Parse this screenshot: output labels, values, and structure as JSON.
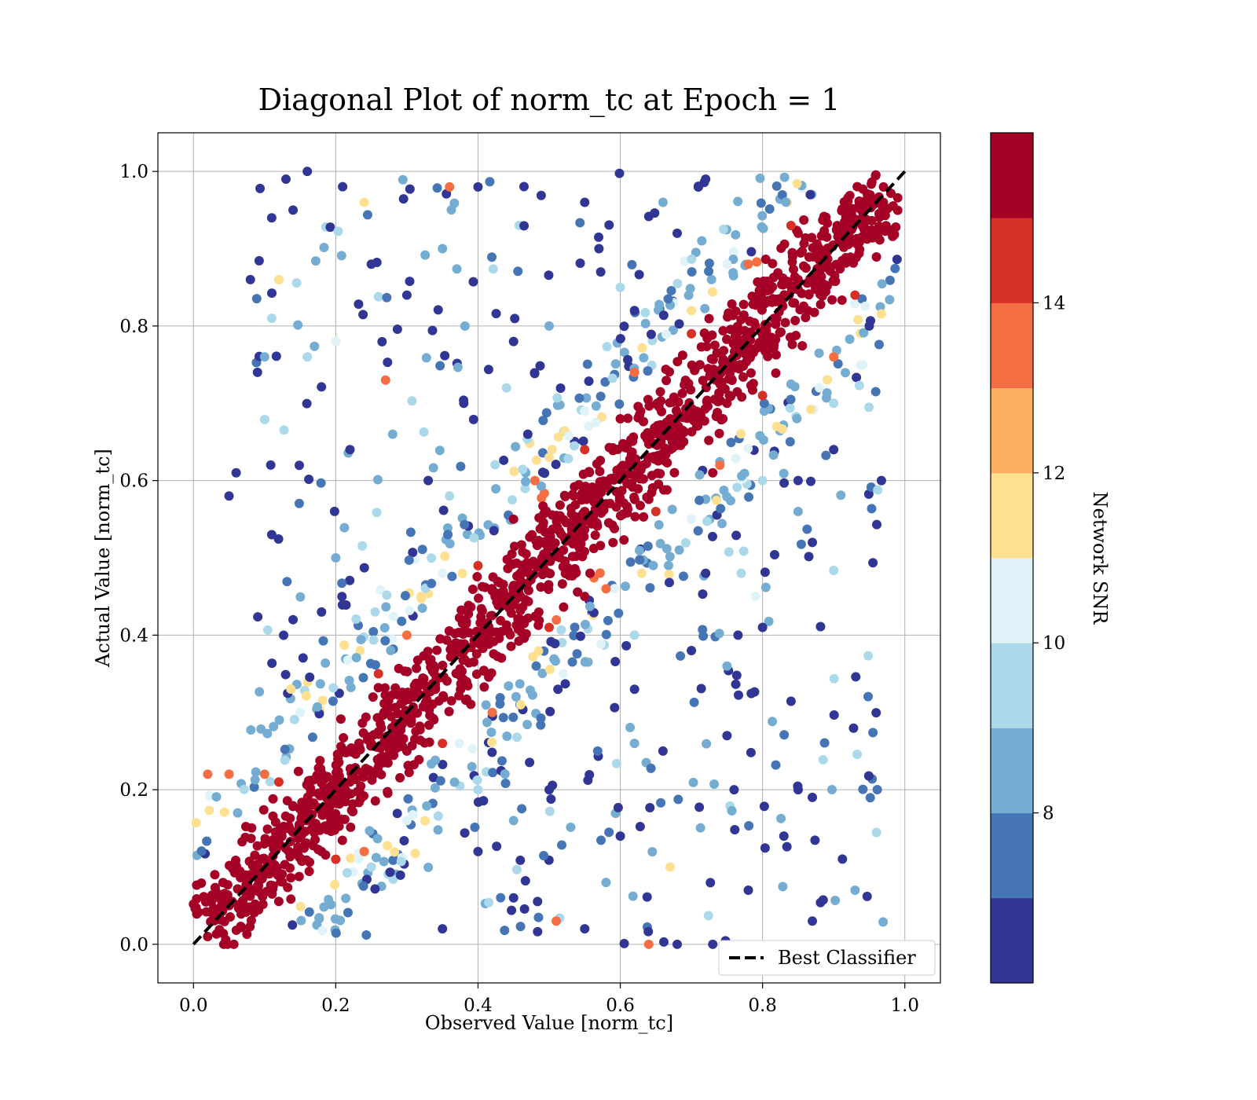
{
  "chart_data": {
    "type": "scatter",
    "title": "Diagonal Plot of norm_tc at Epoch = 1",
    "xlabel": "Observed Value [norm_tc]",
    "ylabel": "Actual Value [norm_tc]",
    "xlim": [
      -0.05,
      1.05
    ],
    "ylim": [
      -0.05,
      1.05
    ],
    "xticks": [
      "0.0",
      "0.2",
      "0.4",
      "0.6",
      "0.8",
      "1.0"
    ],
    "yticks": [
      "0.0",
      "0.2",
      "0.4",
      "0.6",
      "0.8",
      "1.0"
    ],
    "grid": true,
    "legend": {
      "position": "bottom-right",
      "entries": [
        "Best Classifier"
      ]
    },
    "reference_line": {
      "name": "Best Classifier",
      "style": "dashed",
      "color": "#000000",
      "x": [
        0.0,
        1.0
      ],
      "y": [
        0.0,
        1.0
      ]
    },
    "colorbar": {
      "label": "Network SNR",
      "range": [
        6.0,
        16.0
      ],
      "ticks": [
        "8",
        "10",
        "12",
        "14"
      ],
      "bands": [
        "#313695",
        "#4575b4",
        "#74add1",
        "#abd9e9",
        "#e0f3f8",
        "#fee090",
        "#fdae61",
        "#f46d43",
        "#d73027",
        "#a50026"
      ]
    },
    "series": [
      {
        "color_by": "Network SNR",
        "points": [
          [
            0.02,
            0.01,
            15.5
          ],
          [
            0.05,
            0.05,
            15.5
          ],
          [
            0.08,
            0.09,
            15.5
          ],
          [
            0.11,
            0.1,
            15.5
          ],
          [
            0.13,
            0.15,
            15.5
          ],
          [
            0.16,
            0.16,
            15.5
          ],
          [
            0.19,
            0.2,
            15.5
          ],
          [
            0.22,
            0.21,
            15.5
          ],
          [
            0.25,
            0.26,
            15.5
          ],
          [
            0.28,
            0.27,
            15.5
          ],
          [
            0.31,
            0.32,
            15.5
          ],
          [
            0.34,
            0.33,
            15.5
          ],
          [
            0.37,
            0.38,
            15.5
          ],
          [
            0.4,
            0.39,
            15.5
          ],
          [
            0.43,
            0.44,
            15.5
          ],
          [
            0.46,
            0.45,
            15.5
          ],
          [
            0.49,
            0.5,
            15.5
          ],
          [
            0.52,
            0.51,
            15.5
          ],
          [
            0.55,
            0.56,
            15.5
          ],
          [
            0.58,
            0.57,
            15.5
          ],
          [
            0.61,
            0.62,
            15.5
          ],
          [
            0.64,
            0.63,
            15.5
          ],
          [
            0.67,
            0.68,
            15.5
          ],
          [
            0.7,
            0.69,
            15.5
          ],
          [
            0.73,
            0.74,
            15.5
          ],
          [
            0.76,
            0.75,
            15.5
          ],
          [
            0.79,
            0.8,
            15.5
          ],
          [
            0.82,
            0.81,
            15.5
          ],
          [
            0.85,
            0.86,
            15.5
          ],
          [
            0.88,
            0.87,
            15.5
          ],
          [
            0.91,
            0.92,
            15.5
          ],
          [
            0.94,
            0.93,
            15.5
          ],
          [
            0.97,
            0.98,
            15.5
          ],
          [
            0.45,
            0.55,
            15.5
          ],
          [
            0.55,
            0.45,
            15.5
          ],
          [
            0.3,
            0.25,
            15.5
          ],
          [
            0.6,
            0.68,
            15.5
          ],
          [
            0.75,
            0.7,
            15.5
          ],
          [
            0.18,
            0.12,
            15.5
          ],
          [
            0.85,
            0.92,
            15.5
          ],
          [
            0.03,
            0.09,
            15.5
          ],
          [
            0.91,
            0.91,
            15.5
          ],
          [
            0.73,
            0.61,
            15.5
          ],
          [
            0.12,
            0.21,
            14.5
          ],
          [
            0.26,
            0.35,
            14.5
          ],
          [
            0.4,
            0.49,
            14.5
          ],
          [
            0.55,
            0.64,
            14.5
          ],
          [
            0.7,
            0.79,
            14.5
          ],
          [
            0.84,
            0.93,
            14.5
          ],
          [
            0.2,
            0.11,
            14.5
          ],
          [
            0.35,
            0.26,
            14.5
          ],
          [
            0.5,
            0.41,
            14.5
          ],
          [
            0.65,
            0.56,
            14.5
          ],
          [
            0.8,
            0.71,
            14.5
          ],
          [
            0.93,
            0.84,
            14.5
          ],
          [
            0.02,
            0.22,
            13.5
          ],
          [
            0.05,
            0.22,
            13.5
          ],
          [
            0.27,
            0.73,
            13.5
          ],
          [
            0.36,
            0.98,
            13.5
          ],
          [
            0.51,
            0.03,
            13.5
          ],
          [
            0.64,
            0.0,
            13.5
          ],
          [
            0.1,
            0.22,
            13.5
          ],
          [
            0.3,
            0.4,
            13.5
          ],
          [
            0.48,
            0.6,
            13.5
          ],
          [
            0.62,
            0.74,
            13.5
          ],
          [
            0.78,
            0.88,
            13.5
          ],
          [
            0.24,
            0.12,
            13.5
          ],
          [
            0.42,
            0.3,
            13.5
          ],
          [
            0.58,
            0.46,
            13.5
          ],
          [
            0.74,
            0.62,
            13.5
          ],
          [
            0.9,
            0.76,
            13.5
          ],
          [
            0.24,
            0.96,
            11.5
          ],
          [
            0.12,
            0.86,
            11.5
          ],
          [
            0.67,
            0.1,
            11.5
          ],
          [
            0.32,
            0.45,
            11.5
          ],
          [
            0.5,
            0.63,
            11.5
          ],
          [
            0.7,
            0.82,
            11.5
          ],
          [
            0.46,
            0.31,
            11.5
          ],
          [
            0.63,
            0.48,
            11.5
          ],
          [
            0.82,
            0.67,
            11.5
          ],
          [
            0.2,
            0.78,
            10.5
          ],
          [
            0.79,
            0.45,
            10.5
          ],
          [
            0.15,
            0.3,
            10.5
          ],
          [
            0.35,
            0.48,
            10.5
          ],
          [
            0.55,
            0.69,
            10.5
          ],
          [
            0.75,
            0.88,
            10.5
          ],
          [
            0.3,
            0.16,
            10.5
          ],
          [
            0.52,
            0.35,
            10.5
          ],
          [
            0.7,
            0.55,
            10.5
          ],
          [
            0.88,
            0.72,
            10.5
          ],
          [
            0.11,
            0.81,
            9.5
          ],
          [
            0.16,
            0.76,
            9.5
          ],
          [
            0.77,
            0.48,
            9.5
          ],
          [
            0.44,
            0.72,
            9.5
          ],
          [
            0.6,
            0.85,
            9.5
          ],
          [
            0.36,
            0.58,
            9.5
          ],
          [
            0.4,
            0.2,
            9.5
          ],
          [
            0.62,
            0.4,
            9.5
          ],
          [
            0.8,
            0.6,
            9.5
          ],
          [
            0.9,
            0.7,
            9.5
          ],
          [
            0.25,
            0.1,
            9.5
          ],
          [
            0.1,
            0.76,
            8.5
          ],
          [
            0.35,
            0.9,
            8.5
          ],
          [
            0.5,
            0.8,
            8.5
          ],
          [
            0.66,
            0.96,
            8.5
          ],
          [
            0.28,
            0.66,
            8.5
          ],
          [
            0.45,
            0.16,
            8.5
          ],
          [
            0.62,
            0.26,
            8.5
          ],
          [
            0.75,
            0.36,
            8.5
          ],
          [
            0.85,
            0.56,
            8.5
          ],
          [
            0.93,
            0.07,
            8.5
          ],
          [
            0.58,
            0.08,
            8.5
          ],
          [
            0.2,
            0.5,
            8.5
          ],
          [
            0.13,
            0.99,
            6.5
          ],
          [
            0.16,
            1.0,
            6.5
          ],
          [
            0.11,
            0.94,
            6.5
          ],
          [
            0.08,
            0.86,
            6.5
          ],
          [
            0.06,
            0.61,
            6.5
          ],
          [
            0.05,
            0.58,
            6.5
          ],
          [
            0.09,
            0.74,
            6.5
          ],
          [
            0.14,
            0.95,
            6.5
          ],
          [
            0.4,
            0.98,
            6.5
          ],
          [
            0.57,
            0.9,
            6.5
          ],
          [
            0.72,
            0.99,
            6.5
          ],
          [
            0.3,
            0.84,
            6.5
          ],
          [
            0.22,
            0.64,
            6.5
          ],
          [
            0.18,
            0.43,
            6.5
          ],
          [
            0.45,
            0.78,
            6.5
          ],
          [
            0.62,
            0.82,
            6.5
          ],
          [
            0.38,
            0.7,
            6.5
          ],
          [
            0.25,
            0.88,
            6.5
          ],
          [
            0.55,
            0.96,
            6.5
          ],
          [
            0.68,
            0.92,
            6.5
          ],
          [
            0.47,
            0.66,
            6.5
          ],
          [
            0.33,
            0.6,
            6.5
          ],
          [
            0.11,
            0.53,
            6.5
          ],
          [
            0.14,
            0.42,
            6.5
          ],
          [
            0.87,
            0.52,
            6.5
          ],
          [
            0.85,
            0.6,
            6.5
          ],
          [
            0.8,
            0.41,
            6.5
          ],
          [
            0.85,
            0.2,
            6.5
          ],
          [
            0.87,
            0.19,
            6.5
          ],
          [
            0.83,
            0.14,
            6.5
          ],
          [
            0.87,
            0.03,
            6.5
          ],
          [
            0.68,
            0.0,
            6.5
          ],
          [
            0.73,
            0.0,
            6.5
          ],
          [
            0.78,
            0.07,
            6.5
          ],
          [
            0.7,
            0.38,
            6.5
          ],
          [
            0.66,
            0.25,
            6.5
          ],
          [
            0.55,
            0.02,
            6.5
          ],
          [
            0.6,
            0.14,
            6.5
          ],
          [
            0.45,
            0.06,
            6.5
          ],
          [
            0.35,
            0.02,
            6.5
          ],
          [
            0.5,
            0.2,
            6.5
          ],
          [
            0.62,
            0.33,
            6.5
          ],
          [
            0.75,
            0.27,
            6.5
          ],
          [
            0.72,
            0.48,
            6.5
          ],
          [
            0.4,
            0.12,
            6.5
          ],
          [
            0.95,
            0.8,
            6.5
          ],
          [
            0.9,
            0.64,
            6.5
          ],
          [
            0.76,
            0.2,
            6.5
          ]
        ]
      }
    ]
  }
}
